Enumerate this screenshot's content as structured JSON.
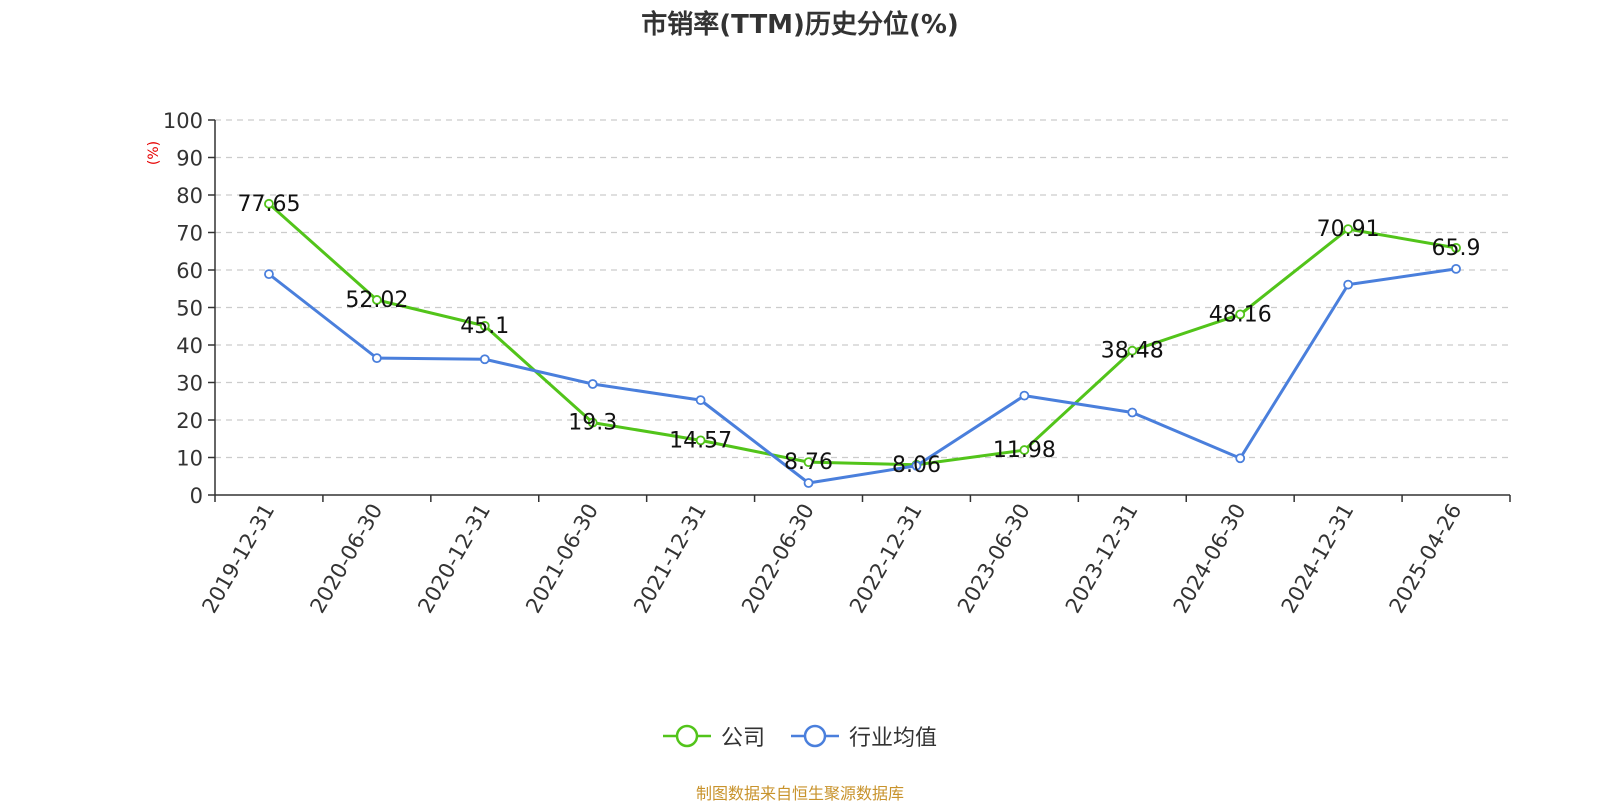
{
  "chart_data": {
    "type": "line",
    "title": "市销率(TTM)历史分位(%)",
    "ylabel": "(%)",
    "xlabel": "",
    "ylim": [
      0,
      100
    ],
    "yticks": [
      0,
      10,
      20,
      30,
      40,
      50,
      60,
      70,
      80,
      90,
      100
    ],
    "grid": true,
    "legend_position": "bottom",
    "categories": [
      "2019-12-31",
      "2020-06-30",
      "2020-12-31",
      "2021-06-30",
      "2021-12-31",
      "2022-06-30",
      "2022-12-31",
      "2023-06-30",
      "2023-12-31",
      "2024-06-30",
      "2024-12-31",
      "2025-04-26"
    ],
    "series": [
      {
        "name": "公司",
        "color": "#52c41a",
        "values": [
          77.65,
          52.02,
          45.1,
          19.3,
          14.57,
          8.76,
          8.06,
          11.98,
          38.48,
          48.16,
          70.91,
          65.9
        ],
        "labels": [
          "77.65",
          "52.02",
          "45.1",
          "19.3",
          "14.57",
          "8.76",
          "8.06",
          "11.98",
          "38.48",
          "48.16",
          "70.91",
          "65.9"
        ]
      },
      {
        "name": "行业均值",
        "color": "#4a7fdc",
        "values": [
          58.9,
          36.5,
          36.2,
          29.6,
          25.3,
          3.2,
          7.8,
          26.5,
          22.0,
          9.8,
          56.1,
          60.3
        ]
      }
    ]
  },
  "source": "制图数据来自恒生聚源数据库"
}
